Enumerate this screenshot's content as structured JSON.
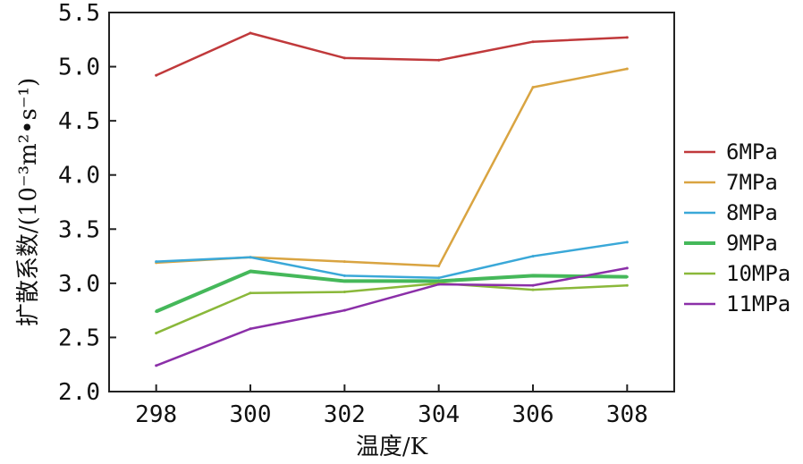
{
  "chart_data": {
    "type": "line",
    "xlabel": "温度/K",
    "ylabel": "扩散系数/(10⁻³m²•s⁻¹)",
    "x": [
      298,
      300,
      302,
      304,
      306,
      308
    ],
    "xlim": [
      297,
      309
    ],
    "ylim": [
      2.0,
      5.5
    ],
    "xticks": [
      "298",
      "300",
      "302",
      "304",
      "306",
      "308"
    ],
    "yticks": [
      "2.0",
      "2.5",
      "3.0",
      "3.5",
      "4.0",
      "4.5",
      "5.0",
      "5.5"
    ],
    "grid": false,
    "legend_position": "right",
    "series": [
      {
        "name": "6MPa",
        "color": "#c0393b",
        "values": [
          4.92,
          5.31,
          5.08,
          5.06,
          5.23,
          5.27
        ]
      },
      {
        "name": "7MPa",
        "color": "#d9a441",
        "values": [
          3.19,
          3.24,
          3.2,
          3.16,
          4.81,
          4.98
        ]
      },
      {
        "name": "8MPa",
        "color": "#3aa8d8",
        "values": [
          3.2,
          3.24,
          3.07,
          3.05,
          3.25,
          3.38
        ]
      },
      {
        "name": "9MPa",
        "color": "#45b85a",
        "values": [
          2.74,
          3.11,
          3.02,
          3.02,
          3.07,
          3.06
        ]
      },
      {
        "name": "10MPa",
        "color": "#8ab83a",
        "values": [
          2.54,
          2.91,
          2.92,
          3.0,
          2.94,
          2.98
        ]
      },
      {
        "name": "11MPa",
        "color": "#8b2fa8",
        "values": [
          2.24,
          2.58,
          2.75,
          2.99,
          2.98,
          3.14
        ]
      }
    ]
  }
}
